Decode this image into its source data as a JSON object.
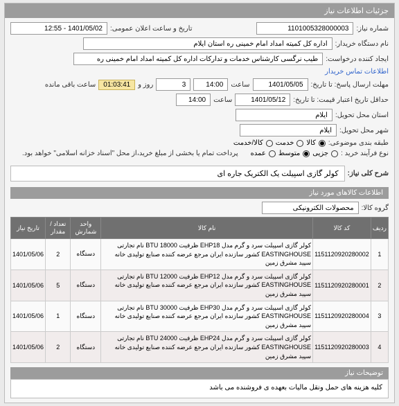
{
  "panel_title": "جزئیات اطلاعات نیاز",
  "labels": {
    "need_no": "شماره نیاز:",
    "announce_dt": "تاریخ و ساعت اعلان عمومی:",
    "buyer_org": "نام دستگاه خریدار:",
    "creator": "ایجاد کننده درخواست:",
    "contact_link": "اطلاعات تماس خریدار",
    "deadline": "مهلت ارسال پاسخ: تا تاریخ:",
    "hour": "ساعت",
    "days_and": "روز و",
    "remain": "ساعت باقی مانده",
    "min_valid": "حداقل تاریخ اعتبار قیمت: تا تاریخ:",
    "province": "استان محل تحویل:",
    "city": "شهر محل تحویل:",
    "category": "طبقه بندی موضوعی:",
    "process": "نوع فرآیند خرید :",
    "pay_note": "پرداخت تمام یا بخشی از مبلغ خرید،از محل \"اسناد خزانه اسلامی\" خواهد بود.",
    "need_title_lbl": "شرح کلی نیاز:",
    "goods_info": "اطلاعات کالاهای مورد نیاز",
    "goods_group": "گروه کالا:",
    "desc_lbl": "توضیحات نیاز"
  },
  "values": {
    "need_no": "1101005328000003",
    "announce_dt": "1401/05/02 - 12:55",
    "buyer_org": "اداره کل کمیته امداد امام خمینی ره استان ایلام",
    "creator": "طیب نرگسی کارشناس خدمات و تدارکات اداره کل کمیته امداد امام خمینی ره",
    "deadline_date": "1401/05/05",
    "deadline_time": "14:00",
    "days": "3",
    "counter": "01:03:41",
    "valid_date": "1401/05/12",
    "valid_time": "14:00",
    "province": "ایلام",
    "city": "ایلام",
    "need_title": "کولر گازی اسپیلت یک الکتریک جاره ای",
    "goods_group": "محصولات الکترونیکی",
    "note": "کلیه هزینه های حمل ونقل مالیات بعهده ی فروشنده می باشد"
  },
  "category_opts": {
    "goods": "کالا",
    "service": "خدمت",
    "both": "کالا/خدمت"
  },
  "process_opts": {
    "low": "جزیی",
    "mid": "متوسط",
    "high": "عمده"
  },
  "table": {
    "headers": {
      "row": "ردیف",
      "code": "کد کالا",
      "name": "نام کالا",
      "unit": "واحد شمارش",
      "qty": "تعداد / مقدار",
      "date": "تاریخ نیاز"
    },
    "rows": [
      {
        "row": "1",
        "code": "1151120920280002",
        "name": "کولر گازی اسپیلت سرد و گرم مدل EHP18 ظرفیت 18000 BTU نام تجارتی EASTINGHOUSE کشور سازنده ایران مرجع عرضه کننده صنایع تولیدی خانه سپید مشرق زمین",
        "unit": "دستگاه",
        "qty": "2",
        "date": "1401/05/06"
      },
      {
        "row": "2",
        "code": "1151120920280001",
        "name": "کولر گازی اسپیلت سرد و گرم مدل EHP12 ظرفیت 12000 BTU نام تجارتی EASTINGHOUSE کشور سازنده ایران مرجع عرضه کننده صنایع تولیدی خانه سپید مشرق زمین",
        "unit": "دستگاه",
        "qty": "5",
        "date": "1401/05/06"
      },
      {
        "row": "3",
        "code": "1151120920280004",
        "name": "کولر گازی اسپیلت سرد و گرم مدل EHP30 ظرفیت 30000 BTU نام تجارتی EASTINGHOUSE کشور سازنده ایران مرجع عرضه کننده صنایع تولیدی خانه سپید مشرق زمین",
        "unit": "دستگاه",
        "qty": "1",
        "date": "1401/05/06"
      },
      {
        "row": "4",
        "code": "1151120920280003",
        "name": "کولر گازی اسپیلت سرد و گرم مدل EHP24 ظرفیت 24000 BTU نام تجارتی EASTINGHOUSE کشور سازنده ایران مرجع عرضه کننده صنایع تولیدی خانه سپید مشرق زمین",
        "unit": "دستگاه",
        "qty": "2",
        "date": "1401/05/06"
      }
    ]
  }
}
